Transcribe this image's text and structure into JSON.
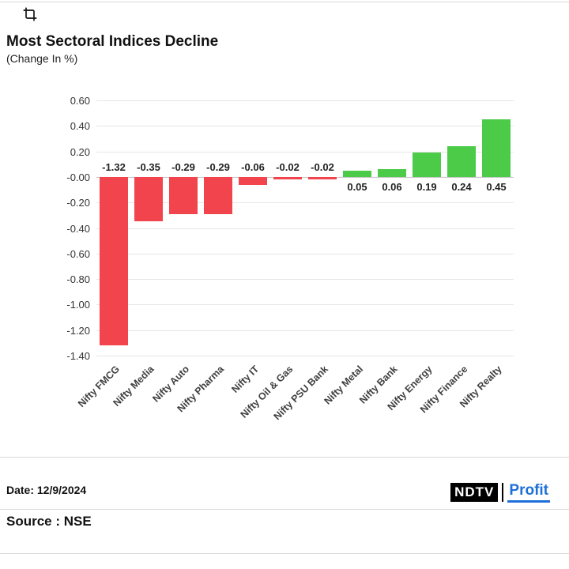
{
  "page": {
    "title": "Most Sectoral Indices Decline",
    "subtitle": "(Change In %)",
    "date_label": "Date: 12/9/2024",
    "source_label": "Source : NSE",
    "logo": {
      "ndtv": "NDTV",
      "profit": "Profit"
    }
  },
  "chart_data": {
    "type": "bar",
    "title": "Most Sectoral Indices Decline",
    "subtitle": "(Change In %)",
    "categories": [
      "Nifty FMCG",
      "Nifty Media",
      "Nifty Auto",
      "Nifty Pharma",
      "Nifty IT",
      "Nifty Oil & Gas",
      "Nifty PSU Bank",
      "Nifty Metal",
      "Nifty Bank",
      "Nifty Energy",
      "Nifty Finance",
      "Nifty Realty"
    ],
    "values": [
      -1.32,
      -0.35,
      -0.29,
      -0.29,
      -0.06,
      -0.02,
      -0.02,
      0.05,
      0.06,
      0.19,
      0.24,
      0.45
    ],
    "value_labels": [
      "-1.32",
      "-0.35",
      "-0.29",
      "-0.29",
      "-0.06",
      "-0.02",
      "-0.02",
      "0.05",
      "0.06",
      "0.19",
      "0.24",
      "0.45"
    ],
    "ylim": [
      -1.4,
      0.6
    ],
    "yticks": [
      "0.60",
      "0.40",
      "0.20",
      "-0.00",
      "-0.20",
      "-0.40",
      "-0.60",
      "-0.80",
      "-1.00",
      "-1.20",
      "-1.40"
    ],
    "grid": true,
    "legend": "none",
    "colors": {
      "negative": "#f2444d",
      "positive": "#4ccb49"
    }
  }
}
